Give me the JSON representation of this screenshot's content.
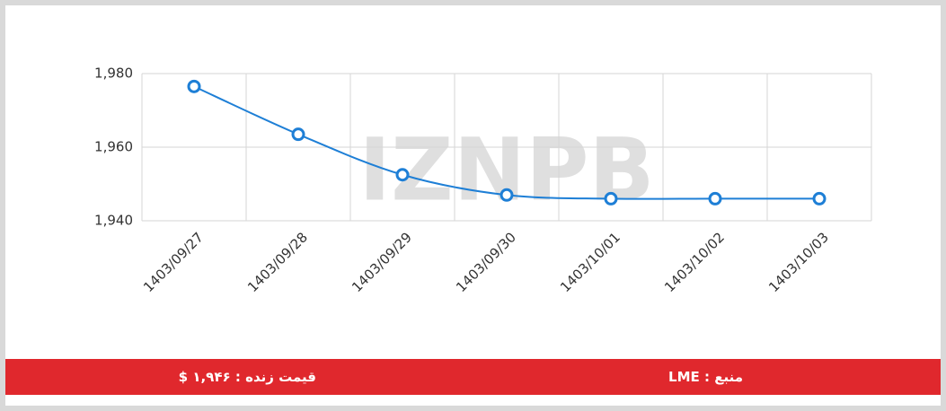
{
  "chart_data": {
    "type": "line",
    "categories": [
      "1403/09/27",
      "1403/09/28",
      "1403/09/29",
      "1403/09/30",
      "1403/10/01",
      "1403/10/02",
      "1403/10/03"
    ],
    "series": [
      {
        "color": "#1e7fd6",
        "values": [
          1976.5,
          1963.5,
          1952.5,
          1947,
          1946,
          1946,
          1946
        ]
      }
    ],
    "ylim": [
      1940,
      1980
    ],
    "yticks": [
      {
        "value": 1940,
        "label": "1,940"
      },
      {
        "value": 1960,
        "label": "1,960"
      },
      {
        "value": 1980,
        "label": "1,980"
      }
    ],
    "grid": true
  },
  "watermark": "IZNPB",
  "footer": {
    "source": "منبع : LME",
    "live_price": "قیمت زنده : ۱,۹۴۶ $"
  }
}
